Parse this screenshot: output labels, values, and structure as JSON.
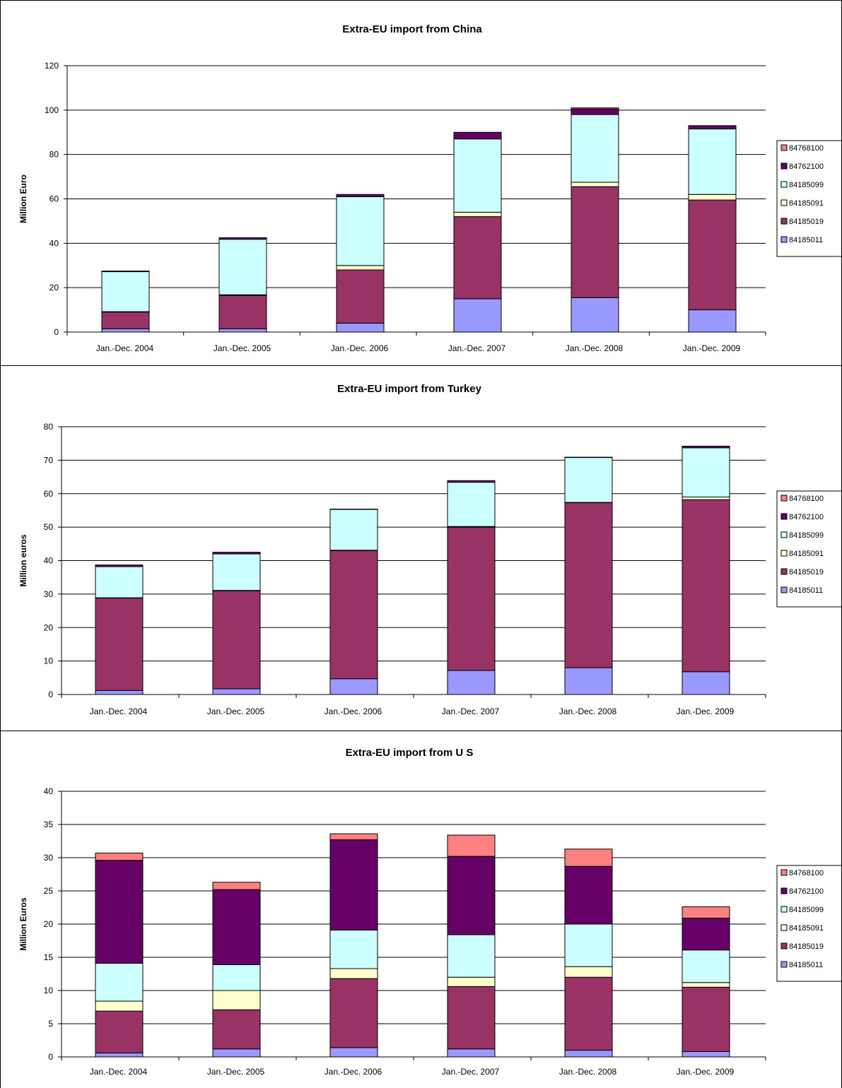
{
  "series_names": [
    "84768100",
    "84762100",
    "84185099",
    "84185091",
    "84185019",
    "84185011"
  ],
  "colors": {
    "84185011": "#9999ff",
    "84185019": "#993366",
    "84185091": "#ffffcc",
    "84185099": "#ccffff",
    "84762100": "#660066",
    "84768100": "#ff8080"
  },
  "chart_data": [
    {
      "type": "bar",
      "stacked": true,
      "title": "Extra-EU import from China",
      "xlabel": "",
      "ylabel": "Million Euro",
      "ylim": [
        0,
        120
      ],
      "yticks": [
        0,
        20,
        40,
        60,
        80,
        100,
        120
      ],
      "grid": true,
      "legend": "right",
      "categories": [
        "Jan.-Dec. 2004",
        "Jan.-Dec. 2005",
        "Jan.-Dec. 2006",
        "Jan.-Dec. 2007",
        "Jan.-Dec. 2008",
        "Jan.-Dec. 2009"
      ],
      "series": [
        {
          "name": "84185011",
          "values": [
            1.5,
            1.5,
            4.0,
            15.0,
            15.5,
            10.0
          ]
        },
        {
          "name": "84185019",
          "values": [
            7.5,
            15.0,
            24.0,
            37.0,
            50.0,
            49.5
          ]
        },
        {
          "name": "84185091",
          "values": [
            0.2,
            0.3,
            2.0,
            2.0,
            2.0,
            2.5
          ]
        },
        {
          "name": "84185099",
          "values": [
            18.0,
            25.0,
            31.0,
            33.0,
            30.5,
            29.5
          ]
        },
        {
          "name": "84762100",
          "values": [
            0.3,
            0.7,
            1.0,
            3.0,
            2.5,
            1.5
          ]
        },
        {
          "name": "84768100",
          "values": [
            0,
            0,
            0,
            0,
            0.5,
            0
          ]
        }
      ]
    },
    {
      "type": "bar",
      "stacked": true,
      "title": "Extra-EU import from Turkey",
      "xlabel": "",
      "ylabel": "Million euros",
      "ylim": [
        0,
        80
      ],
      "yticks": [
        0,
        10,
        20,
        30,
        40,
        50,
        60,
        70,
        80
      ],
      "grid": true,
      "legend": "right",
      "categories": [
        "Jan.-Dec. 2004",
        "Jan.-Dec. 2005",
        "Jan.-Dec. 2006",
        "Jan.-Dec. 2007",
        "Jan.-Dec. 2008",
        "Jan.-Dec. 2009"
      ],
      "series": [
        {
          "name": "84185011",
          "values": [
            1.2,
            1.7,
            4.7,
            7.2,
            8.0,
            6.8
          ]
        },
        {
          "name": "84185019",
          "values": [
            27.6,
            29.3,
            38.3,
            42.8,
            49.3,
            51.4
          ]
        },
        {
          "name": "84185091",
          "values": [
            0.1,
            0.1,
            0.1,
            0.2,
            0.1,
            0.8
          ]
        },
        {
          "name": "84185099",
          "values": [
            9.3,
            10.9,
            12.2,
            13.2,
            13.4,
            14.7
          ]
        },
        {
          "name": "84762100",
          "values": [
            0.5,
            0.5,
            0.1,
            0.5,
            0.1,
            0.5
          ]
        },
        {
          "name": "84768100",
          "values": [
            0,
            0,
            0,
            0,
            0,
            0
          ]
        }
      ]
    },
    {
      "type": "bar",
      "stacked": true,
      "title": "Extra-EU import from U S",
      "xlabel": "",
      "ylabel": "Million Euros",
      "ylim": [
        0,
        40
      ],
      "yticks": [
        0,
        5,
        10,
        15,
        20,
        25,
        30,
        35,
        40
      ],
      "grid": true,
      "legend": "right",
      "categories": [
        "Jan.-Dec. 2004",
        "Jan.-Dec. 2005",
        "Jan.-Dec. 2006",
        "Jan.-Dec. 2007",
        "Jan.-Dec. 2008",
        "Jan.-Dec. 2009"
      ],
      "series": [
        {
          "name": "84185011",
          "values": [
            0.6,
            1.2,
            1.4,
            1.2,
            1.0,
            0.8
          ]
        },
        {
          "name": "84185019",
          "values": [
            6.3,
            5.9,
            10.4,
            9.4,
            11.0,
            9.7
          ]
        },
        {
          "name": "84185091",
          "values": [
            1.5,
            2.9,
            1.5,
            1.4,
            1.6,
            0.7
          ]
        },
        {
          "name": "84185099",
          "values": [
            5.7,
            3.9,
            5.8,
            6.4,
            6.4,
            4.9
          ]
        },
        {
          "name": "84762100",
          "values": [
            15.5,
            11.3,
            13.6,
            11.8,
            8.7,
            4.8
          ]
        },
        {
          "name": "84768100",
          "values": [
            1.1,
            1.1,
            0.9,
            3.2,
            2.6,
            1.7
          ]
        }
      ]
    }
  ]
}
